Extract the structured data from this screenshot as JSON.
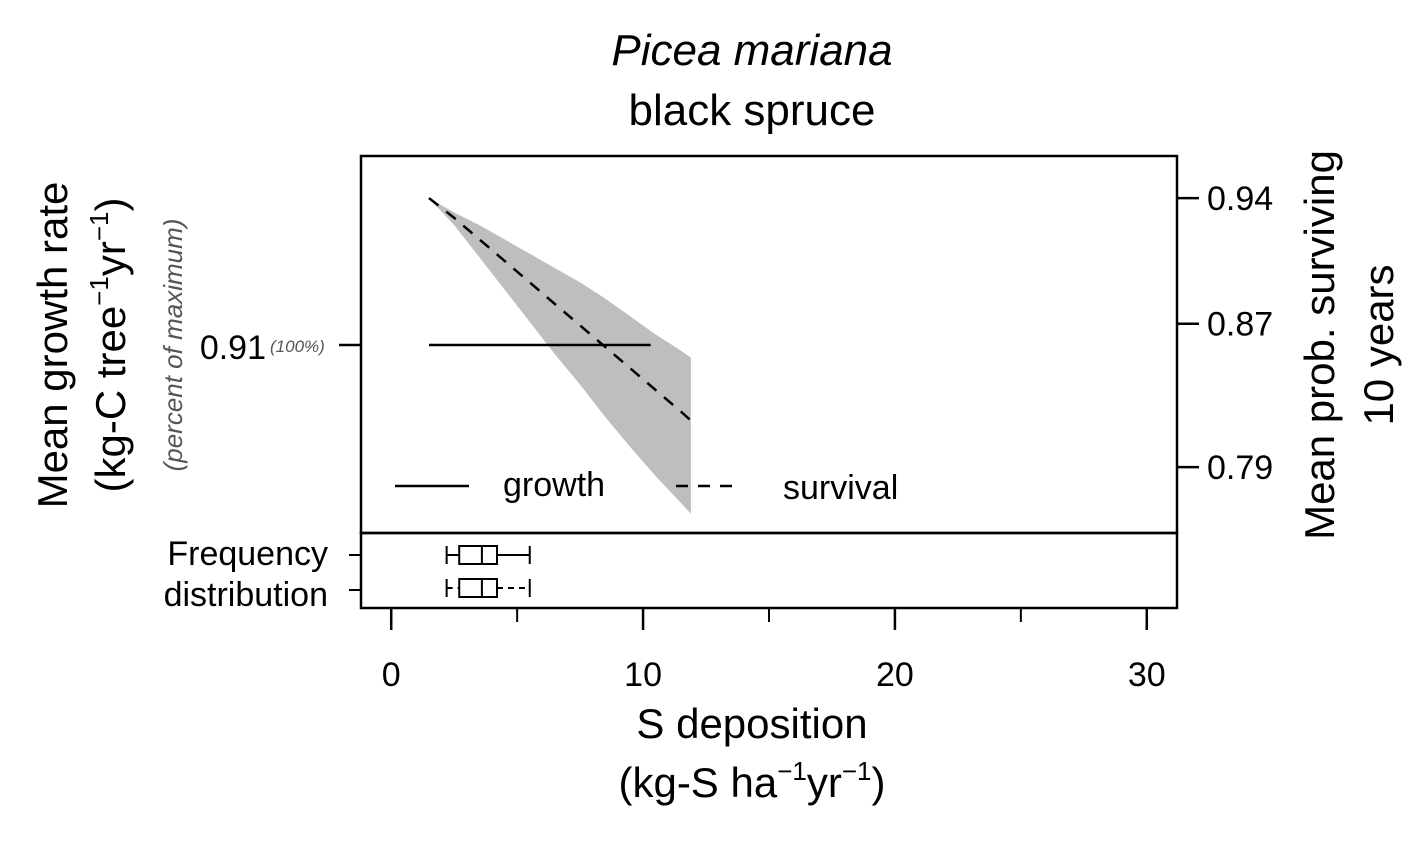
{
  "chart_data": {
    "type": "line",
    "title_italic": "Picea mariana",
    "title": "black spruce",
    "xlabel": {
      "line1": "S deposition",
      "line2_prefix": "(kg-S ha",
      "line2_exp1": "−1",
      "line2_mid": "yr",
      "line2_exp2": "−1",
      "line2_suffix": ")"
    },
    "ylabel_left": {
      "line1": "Mean growth rate",
      "line2_prefix": "(kg-C tree",
      "line2_exp1": "−1",
      "line2_mid": "yr",
      "line2_exp2": "−1",
      "line2_suffix": ")",
      "subtitle": "(percent of maximum)"
    },
    "ylabel_right": {
      "line1": "Mean prob. surviving",
      "line2": "10 years"
    },
    "x_ticks": [
      0,
      10,
      20,
      30
    ],
    "x_tick_labels": [
      "0",
      "10",
      "20",
      "30"
    ],
    "x_minor_ticks": [
      5,
      15,
      25
    ],
    "xlim": [
      -1.2,
      31.2
    ],
    "left_ticks": [
      {
        "label": "0.91",
        "pct": "(100%)"
      }
    ],
    "right_ticks": [
      0.94,
      0.87,
      0.79
    ],
    "right_tick_labels": [
      "0.94",
      "0.87",
      "0.79"
    ],
    "right_ylim": [
      0.7533,
      0.9635
    ],
    "series": [
      {
        "name": "growth",
        "style": "solid",
        "axis": "left",
        "x": [
          1.5,
          10.3
        ],
        "y": [
          0.91,
          0.91
        ]
      },
      {
        "name": "survival",
        "style": "dashed",
        "axis": "right",
        "x": [
          1.5,
          2.5,
          3.5,
          4.5,
          5.5,
          6.5,
          7.5,
          8.5,
          9.5,
          10.5,
          11.5,
          11.9
        ],
        "y": [
          0.94,
          0.929,
          0.917,
          0.905,
          0.893,
          0.881,
          0.869,
          0.857,
          0.845,
          0.833,
          0.821,
          0.816
        ],
        "ci_lower": [
          0.94,
          0.925,
          0.907,
          0.889,
          0.871,
          0.853,
          0.836,
          0.818,
          0.801,
          0.785,
          0.77,
          0.764
        ],
        "ci_upper": [
          0.94,
          0.932,
          0.925,
          0.917,
          0.909,
          0.901,
          0.893,
          0.884,
          0.874,
          0.864,
          0.855,
          0.851
        ]
      }
    ],
    "legend": {
      "placement": "bottom",
      "items": [
        "growth",
        "survival"
      ]
    },
    "frequency_distribution": {
      "label_line1": "Frequency",
      "label_line2": "distribution",
      "boxes": [
        {
          "whisker_low": 2.2,
          "q1": 2.7,
          "median": 3.6,
          "q3": 4.2,
          "whisker_high": 5.5
        },
        {
          "whisker_low": 2.2,
          "q1": 2.7,
          "median": 3.6,
          "q3": 4.2,
          "whisker_high": 5.5
        }
      ]
    },
    "colors": {
      "ci_band": "#bebebe",
      "line": "#000000"
    }
  }
}
